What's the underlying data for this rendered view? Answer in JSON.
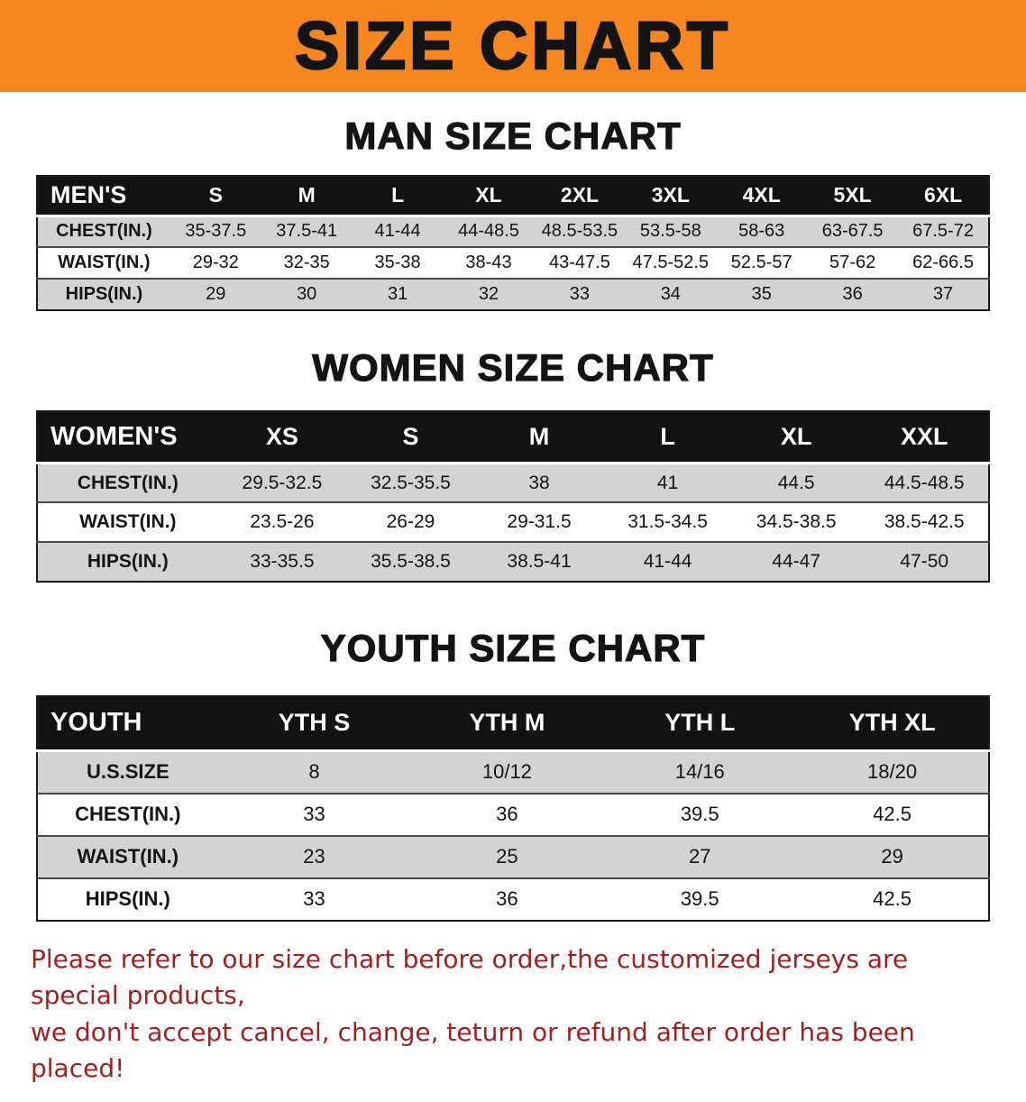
{
  "banner": {
    "title": "SIZE CHART",
    "background_color": "#f6861f"
  },
  "sections": [
    {
      "heading": "MAN SIZE CHART",
      "table": {
        "header": [
          "MEN'S",
          "S",
          "M",
          "L",
          "XL",
          "2XL",
          "3XL",
          "4XL",
          "5XL",
          "6XL"
        ],
        "rows": [
          {
            "label": "CHEST(IN.)",
            "values": [
              "35-37.5",
              "37.5-41",
              "41-44",
              "44-48.5",
              "48.5-53.5",
              "53.5-58",
              "58-63",
              "63-67.5",
              "67.5-72"
            ]
          },
          {
            "label": "WAIST(IN.)",
            "values": [
              "29-32",
              "32-35",
              "35-38",
              "38-43",
              "43-47.5",
              "47.5-52.5",
              "52.5-57",
              "57-62",
              "62-66.5"
            ]
          },
          {
            "label": "HIPS(IN.)",
            "values": [
              "29",
              "30",
              "31",
              "32",
              "33",
              "34",
              "35",
              "36",
              "37"
            ]
          }
        ]
      }
    },
    {
      "heading": "WOMEN SIZE CHART",
      "table": {
        "header": [
          "WOMEN'S",
          "XS",
          "S",
          "M",
          "L",
          "XL",
          "XXL"
        ],
        "rows": [
          {
            "label": "CHEST(IN.)",
            "values": [
              "29.5-32.5",
              "32.5-35.5",
              "38",
              "41",
              "44.5",
              "44.5-48.5"
            ]
          },
          {
            "label": "WAIST(IN.)",
            "values": [
              "23.5-26",
              "26-29",
              "29-31.5",
              "31.5-34.5",
              "34.5-38.5",
              "38.5-42.5"
            ]
          },
          {
            "label": "HIPS(IN.)",
            "values": [
              "33-35.5",
              "35.5-38.5",
              "38.5-41",
              "41-44",
              "44-47",
              "47-50"
            ]
          }
        ]
      }
    },
    {
      "heading": "YOUTH SIZE CHART",
      "table": {
        "header": [
          "YOUTH",
          "YTH S",
          "YTH M",
          "YTH L",
          "YTH XL"
        ],
        "rows": [
          {
            "label": "U.S.SIZE",
            "values": [
              "8",
              "10/12",
              "14/16",
              "18/20"
            ]
          },
          {
            "label": "CHEST(IN.)",
            "values": [
              "33",
              "36",
              "39.5",
              "42.5"
            ]
          },
          {
            "label": "WAIST(IN.)",
            "values": [
              "23",
              "25",
              "27",
              "29"
            ]
          },
          {
            "label": "HIPS(IN.)",
            "values": [
              "33",
              "36",
              "39.5",
              "42.5"
            ]
          }
        ]
      }
    }
  ],
  "disclaimer": {
    "color": "#a31f1f",
    "lines": [
      "Please refer to our size chart before order,the customized jerseys are special products,",
      "we don't accept cancel, change, teturn or refund after order has been placed!"
    ]
  }
}
